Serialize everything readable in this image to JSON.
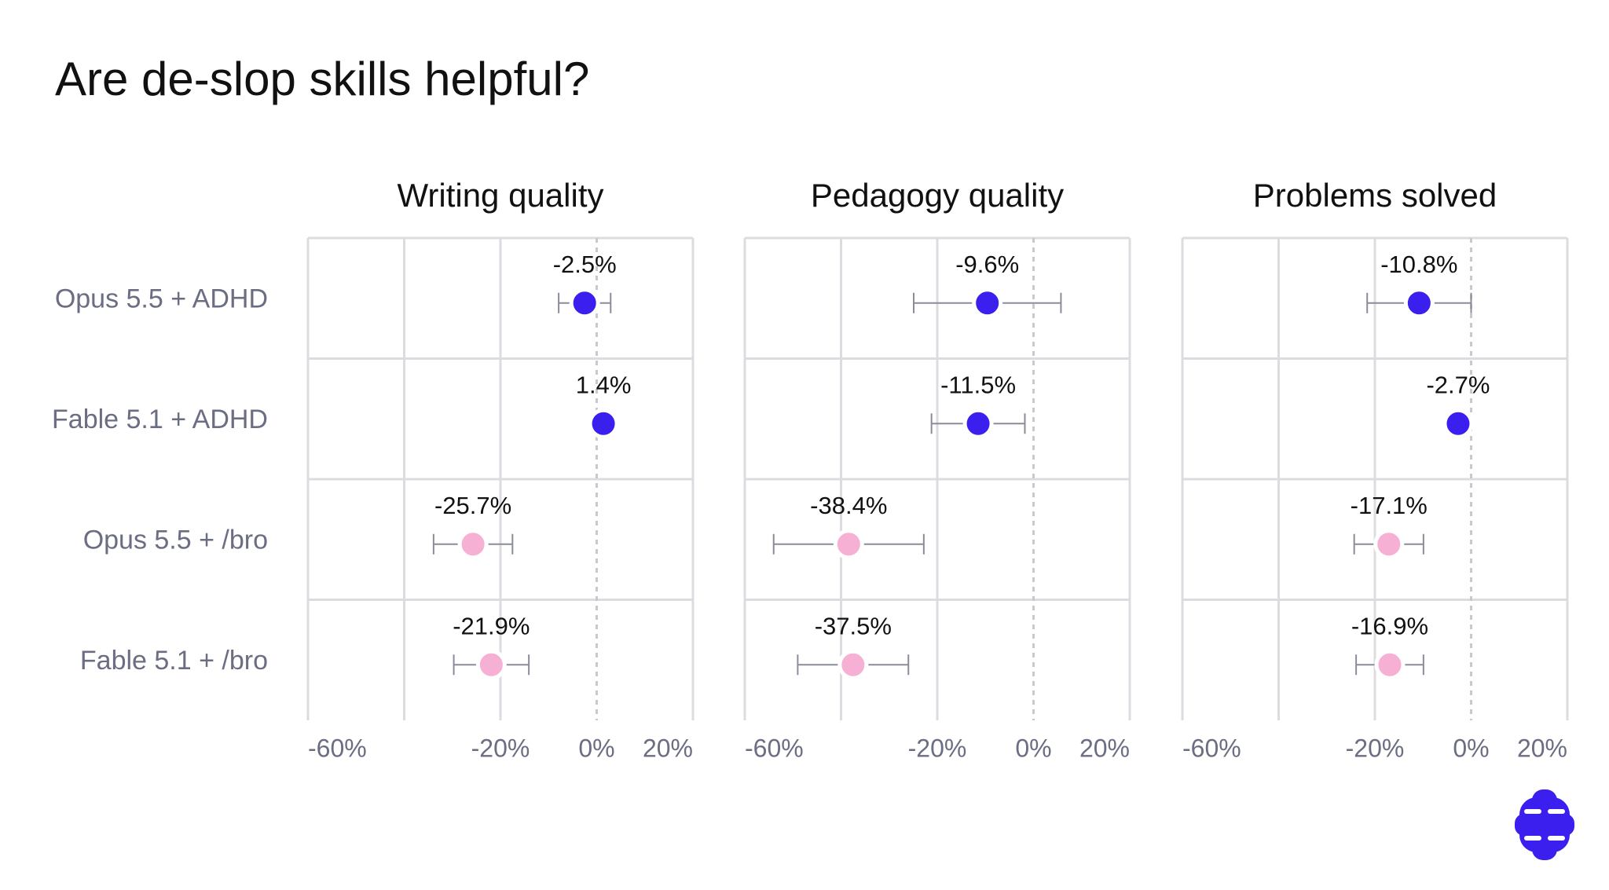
{
  "title": "Are de-slop skills helpful?",
  "categories": [
    "Opus 5.5 + ADHD",
    "Fable 5.1 + ADHD",
    "Opus 5.5 + /bro",
    "Fable 5.1 + /bro"
  ],
  "chart_data": [
    {
      "type": "dot",
      "title": "Writing quality",
      "values": [
        -2.5,
        1.4,
        -25.7,
        -21.9
      ],
      "value_labels": [
        "-2.5%",
        "1.4%",
        "-25.7%",
        "-21.9%"
      ],
      "errors": [
        5.4,
        1.5,
        8.2,
        7.8
      ],
      "colors": [
        "#3a1fee",
        "#3a1fee",
        "#f5b0d3",
        "#f5b0d3"
      ],
      "xlim": [
        -60,
        20
      ],
      "xticks": [
        {
          "value": -60,
          "label": "-60%"
        },
        {
          "value": -40,
          "label": null
        },
        {
          "value": -20,
          "label": "-20%"
        },
        {
          "value": 0,
          "label": "0%"
        },
        {
          "value": 20,
          "label": "20%"
        }
      ],
      "grid": true,
      "zero_line": "dashed"
    },
    {
      "type": "dot",
      "title": "Pedagogy quality",
      "values": [
        -9.6,
        -11.5,
        -38.4,
        -37.5
      ],
      "value_labels": [
        "-9.6%",
        "-11.5%",
        "-38.4%",
        "-37.5%"
      ],
      "errors": [
        15.3,
        9.7,
        15.6,
        11.5
      ],
      "colors": [
        "#3a1fee",
        "#3a1fee",
        "#f5b0d3",
        "#f5b0d3"
      ],
      "xlim": [
        -60,
        20
      ],
      "xticks": [
        {
          "value": -60,
          "label": "-60%"
        },
        {
          "value": -40,
          "label": null
        },
        {
          "value": -20,
          "label": "-20%"
        },
        {
          "value": 0,
          "label": "0%"
        },
        {
          "value": 20,
          "label": "20%"
        }
      ],
      "grid": true,
      "zero_line": "dashed"
    },
    {
      "type": "dot",
      "title": "Problems solved",
      "values": [
        -10.8,
        -2.7,
        -17.1,
        -16.9
      ],
      "value_labels": [
        "-10.8%",
        "-2.7%",
        "-17.1%",
        "-16.9%"
      ],
      "errors": [
        10.8,
        1.0,
        7.2,
        7.0
      ],
      "colors": [
        "#3a1fee",
        "#3a1fee",
        "#f5b0d3",
        "#f5b0d3"
      ],
      "xlim": [
        -60,
        20
      ],
      "xticks": [
        {
          "value": -60,
          "label": "-60%"
        },
        {
          "value": -40,
          "label": null
        },
        {
          "value": -20,
          "label": "-20%"
        },
        {
          "value": 0,
          "label": "0%"
        },
        {
          "value": 20,
          "label": "20%"
        }
      ],
      "grid": true,
      "zero_line": "dashed"
    }
  ]
}
